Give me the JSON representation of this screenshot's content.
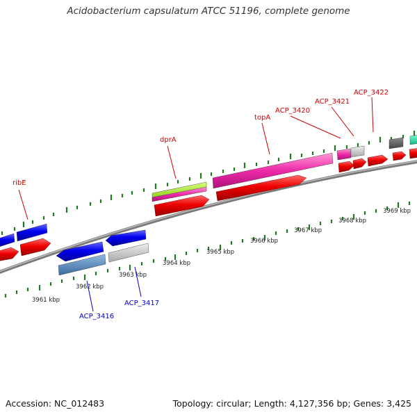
{
  "title": "Acidobacterium capsulatum ATCC 51196, complete genome",
  "footer": {
    "accession": "Accession: NC_012483",
    "summary": "Topology: circular; Length: 4,127,356 bp; Genes: 3,425"
  },
  "colors": {
    "backbone": "#8c8c8c",
    "tick": "#1e7a1e",
    "label_plus": "#cc0000",
    "label_minus": "#0000cc"
  },
  "scale_labels": [
    "3961 kbp",
    "3962 kbp",
    "3963 kbp",
    "3964 kbp",
    "3965 kbp",
    "3966 kbp",
    "3967 kbp",
    "3968 kbp",
    "3969 kbp"
  ],
  "gene_labels": {
    "plus": [
      "ribE",
      "dprA",
      "topA",
      "ACP_3420",
      "ACP_3421",
      "ACP_3422"
    ],
    "minus": [
      "ACP_3416",
      "ACP_3417"
    ]
  }
}
